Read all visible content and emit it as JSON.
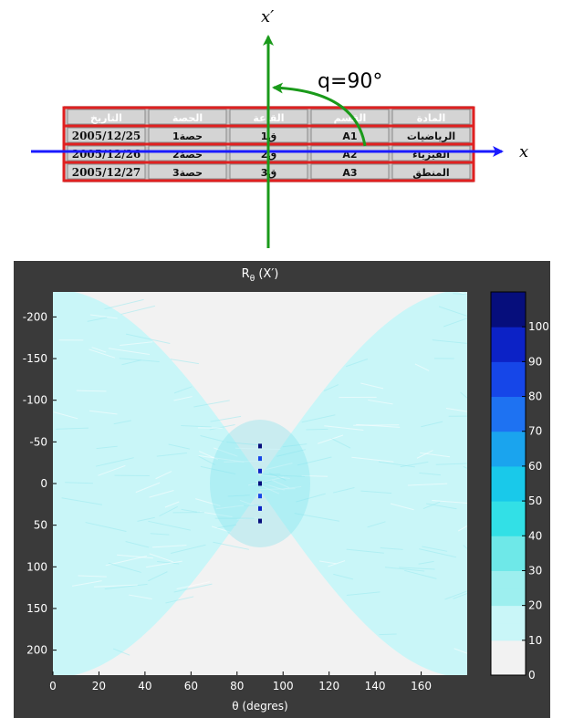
{
  "diagram": {
    "x_axis_label": "x",
    "x_prime_label": "x′",
    "angle_label": "q=90°",
    "table": {
      "headers": [
        "التاريخ",
        "الحصة",
        "القاعة",
        "القسم",
        "المادة"
      ],
      "rows": [
        [
          "2005/12/25",
          "حصة1",
          "ق1",
          "A1",
          "الرياضيات"
        ],
        [
          "2005/12/26",
          "حصة2",
          "ق2",
          "A2",
          "الفيزياء"
        ],
        [
          "2005/12/27",
          "حصة3",
          "ق3",
          "A3",
          "المنطق"
        ]
      ]
    },
    "colors": {
      "x_axis": "#1a1aff",
      "x_prime_axis": "#1a9a1a",
      "row_outline": "#e02020",
      "table_bg": "#c8c8c8"
    }
  },
  "chart_data": {
    "type": "heatmap",
    "title": "R_θ (X′)",
    "title_base": "R",
    "title_sub": "θ",
    "title_suffix": " (X′)",
    "xlabel": "θ (degres)",
    "ylabel": "",
    "xlim": [
      0,
      180
    ],
    "ylim": [
      230,
      -230
    ],
    "xticks": [
      0,
      20,
      40,
      60,
      80,
      100,
      120,
      140,
      160
    ],
    "yticks": [
      -200,
      -150,
      -100,
      -50,
      0,
      50,
      100,
      150,
      200
    ],
    "colorbar": {
      "range": [
        0,
        110
      ],
      "ticks": [
        0,
        10,
        20,
        30,
        40,
        50,
        60,
        70,
        80,
        90,
        100
      ]
    },
    "peaks": [
      {
        "theta": 90,
        "rho": -45,
        "value": 100
      },
      {
        "theta": 90,
        "rho": -30,
        "value": 80
      },
      {
        "theta": 90,
        "rho": -15,
        "value": 90
      },
      {
        "theta": 90,
        "rho": 0,
        "value": 100
      },
      {
        "theta": 90,
        "rho": 15,
        "value": 80
      },
      {
        "theta": 90,
        "rho": 30,
        "value": 90
      },
      {
        "theta": 90,
        "rho": 45,
        "value": 100
      }
    ],
    "background_value": 10,
    "colors": {
      "frame": "#3a3a3a",
      "plot_empty": "#f2f2f2",
      "band": "#c9f6f8"
    }
  }
}
